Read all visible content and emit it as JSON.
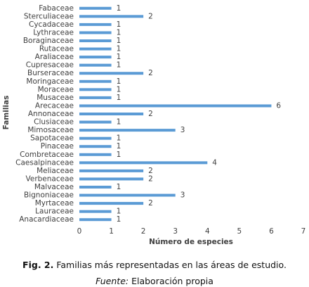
{
  "chart_data": {
    "type": "hbar",
    "categories": [
      "Fabaceae",
      "Sterculiaceae",
      "Cycadaceae",
      "Lythraceae",
      "Boraginaceae",
      "Rutaceae",
      "Araliaceae",
      "Cupresaceae",
      "Burseraceae",
      "Moringaceae",
      "Moraceae",
      "Musaceae",
      "Arecaceae",
      "Annonaceae",
      "Clusiaceae",
      "Mimosaceae",
      "Sapotaceae",
      "Pinaceae",
      "Combretaceae",
      "Caesalpinaceae",
      "Meliaceae",
      "Verbenaceae",
      "Malvaceae",
      "Bignoniaceae",
      "Myrtaceae",
      "Lauraceae",
      "Anacardiaceae"
    ],
    "values": [
      1,
      2,
      1,
      1,
      1,
      1,
      1,
      1,
      2,
      1,
      1,
      1,
      6,
      2,
      1,
      3,
      1,
      1,
      1,
      4,
      2,
      2,
      1,
      3,
      2,
      1,
      1
    ],
    "color": "#5b9bd5",
    "xlim": [
      0,
      7
    ],
    "xticks": [
      0,
      1,
      2,
      3,
      4,
      5,
      6,
      7
    ],
    "xlabel": "Número de especies",
    "ylabel": "Familias",
    "grid": false
  },
  "caption": {
    "label": "Fig. 2.",
    "text": "Familias más representadas en las áreas de estudio."
  },
  "source": {
    "label": "Fuente:",
    "text": "Elaboración propia"
  }
}
